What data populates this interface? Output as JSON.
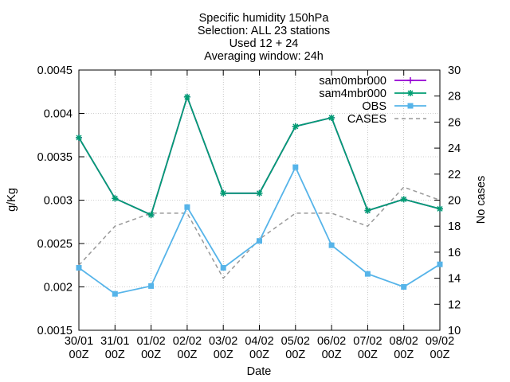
{
  "chart_data": {
    "type": "line",
    "title_lines": [
      "Specific humidity 150hPa",
      "Selection: ALL      23 stations",
      "Used 12 + 24",
      "Averaging window: 24h"
    ],
    "xlabel": "Date",
    "ylabel": "g/Kg",
    "y2label": "No cases",
    "categories": [
      [
        "30/01",
        "00Z"
      ],
      [
        "31/01",
        "00Z"
      ],
      [
        "01/02",
        "00Z"
      ],
      [
        "02/02",
        "00Z"
      ],
      [
        "03/02",
        "00Z"
      ],
      [
        "04/02",
        "00Z"
      ],
      [
        "05/02",
        "00Z"
      ],
      [
        "06/02",
        "00Z"
      ],
      [
        "07/02",
        "00Z"
      ],
      [
        "08/02",
        "00Z"
      ],
      [
        "09/02",
        "00Z"
      ]
    ],
    "ylim": [
      0.0015,
      0.0045
    ],
    "y_ticks": [
      "0.0015",
      "0.002",
      "0.0025",
      "0.003",
      "0.0035",
      "0.004",
      "0.0045"
    ],
    "y2lim": [
      10,
      30
    ],
    "y2_ticks": [
      "10",
      "12",
      "14",
      "16",
      "18",
      "20",
      "22",
      "24",
      "26",
      "28",
      "30"
    ],
    "grid": true,
    "legend_position": "top-right",
    "series": [
      {
        "name": "sam0mbr000",
        "axis": "y",
        "color": "#9400d3",
        "marker": "plus",
        "dashed": false,
        "values": [
          0.00372,
          0.00302,
          0.00283,
          0.00419,
          0.00308,
          0.00308,
          0.00385,
          0.00395,
          0.00288,
          0.00301,
          0.0029
        ]
      },
      {
        "name": "sam4mbr000",
        "axis": "y",
        "color": "#009e73",
        "marker": "star",
        "dashed": false,
        "values": [
          0.00372,
          0.00302,
          0.00283,
          0.00419,
          0.00308,
          0.00308,
          0.00385,
          0.00395,
          0.00288,
          0.00301,
          0.0029
        ]
      },
      {
        "name": "OBS",
        "axis": "y",
        "color": "#56b4e9",
        "marker": "box",
        "dashed": false,
        "values": [
          0.00222,
          0.00192,
          0.00201,
          0.00292,
          0.00222,
          0.00253,
          0.00338,
          0.00248,
          0.00215,
          0.002,
          0.00226
        ]
      },
      {
        "name": "CASES",
        "axis": "y2",
        "color": "#999999",
        "marker": "none",
        "dashed": true,
        "values": [
          15,
          18,
          19,
          19,
          14,
          17,
          19,
          19,
          18,
          21,
          20
        ]
      }
    ]
  }
}
